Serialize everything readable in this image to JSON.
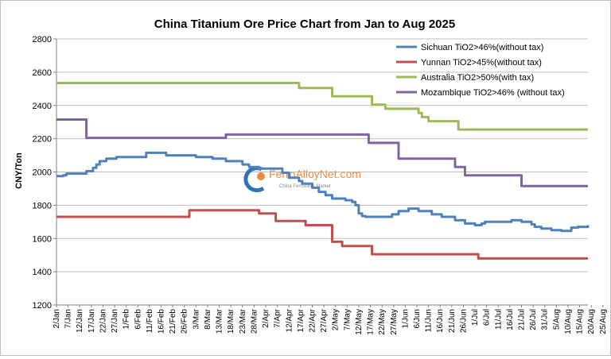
{
  "chart_data": {
    "type": "line",
    "title": "China Titanium Ore Price Chart from Jan to Aug 2025",
    "ylabel": "CNY/Ton",
    "xlabel": "",
    "ylim": [
      1200,
      2800
    ],
    "yticks": [
      1200,
      1400,
      1600,
      1800,
      2000,
      2200,
      2400,
      2600,
      2800
    ],
    "grid": true,
    "legend_position": "top-right",
    "x_count": 161,
    "xtick_labels": [
      "2/Jan",
      "7/Jan",
      "12/Jan",
      "17/Jan",
      "22/Jan",
      "27/Jan",
      "1/Feb",
      "6/Feb",
      "11/Feb",
      "16/Feb",
      "21/Feb",
      "26/Feb",
      "3/Mar",
      "8/Mar",
      "13/Mar",
      "18/Mar",
      "23/Mar",
      "28/Mar",
      "2/Apr",
      "7/Apr",
      "12/Apr",
      "17/Apr",
      "22/Apr",
      "27/Apr",
      "2/May",
      "7/May",
      "12/May",
      "17/May",
      "22/May",
      "27/May",
      "1/Jun",
      "6/Jun",
      "11/Jun",
      "16/Jun",
      "21/Jun",
      "26/Jun",
      "1/Jul",
      "6/Jul",
      "11/Jul",
      "16/Jul",
      "21/Jul",
      "26/Jul",
      "31/Jul",
      "5/Aug",
      "10/Aug",
      "15/Aug",
      "20/Aug",
      "25/Aug"
    ],
    "series": [
      {
        "name": "Sichuan TiO2>46%(without tax)",
        "color": "#4f81bd",
        "steps": [
          [
            0,
            1975
          ],
          [
            2,
            1980
          ],
          [
            3,
            1990
          ],
          [
            9,
            2005
          ],
          [
            11,
            2025
          ],
          [
            12,
            2045
          ],
          [
            13,
            2065
          ],
          [
            15,
            2080
          ],
          [
            18,
            2090
          ],
          [
            27,
            2115
          ],
          [
            33,
            2100
          ],
          [
            42,
            2090
          ],
          [
            47,
            2080
          ],
          [
            51,
            2065
          ],
          [
            56,
            2045
          ],
          [
            58,
            2030
          ],
          [
            61,
            2020
          ],
          [
            68,
            1995
          ],
          [
            70,
            1965
          ],
          [
            73,
            1945
          ],
          [
            74,
            1930
          ],
          [
            77,
            1905
          ],
          [
            79,
            1880
          ],
          [
            81,
            1860
          ],
          [
            83,
            1840
          ],
          [
            87,
            1830
          ],
          [
            89,
            1820
          ],
          [
            90,
            1800
          ],
          [
            91,
            1750
          ],
          [
            92,
            1735
          ],
          [
            93,
            1730
          ],
          [
            101,
            1745
          ],
          [
            103,
            1765
          ],
          [
            106,
            1780
          ],
          [
            109,
            1765
          ],
          [
            113,
            1745
          ],
          [
            116,
            1730
          ],
          [
            120,
            1710
          ],
          [
            123,
            1690
          ],
          [
            126,
            1680
          ],
          [
            128,
            1690
          ],
          [
            129,
            1700
          ],
          [
            137,
            1710
          ],
          [
            140,
            1700
          ],
          [
            143,
            1685
          ],
          [
            144,
            1670
          ],
          [
            146,
            1660
          ],
          [
            149,
            1650
          ],
          [
            152,
            1645
          ],
          [
            155,
            1665
          ],
          [
            157,
            1670
          ],
          [
            159,
            1670
          ],
          [
            160,
            1680
          ]
        ]
      },
      {
        "name": "Yunnan TiO2>45%(without tax)",
        "color": "#c0504d",
        "steps": [
          [
            0,
            1730
          ],
          [
            40,
            1770
          ],
          [
            61,
            1750
          ],
          [
            66,
            1705
          ],
          [
            75,
            1680
          ],
          [
            83,
            1580
          ],
          [
            86,
            1555
          ],
          [
            95,
            1505
          ],
          [
            127,
            1480
          ]
        ]
      },
      {
        "name": "Australia TiO2>50%(with tax)",
        "color": "#9bbb59",
        "steps": [
          [
            0,
            2535
          ],
          [
            73,
            2505
          ],
          [
            83,
            2455
          ],
          [
            95,
            2405
          ],
          [
            99,
            2380
          ],
          [
            109,
            2355
          ],
          [
            110,
            2330
          ],
          [
            112,
            2305
          ],
          [
            121,
            2255
          ]
        ]
      },
      {
        "name": "Mozambique TiO2>46% (without tax)",
        "color": "#8064a2",
        "steps": [
          [
            0,
            2315
          ],
          [
            9,
            2205
          ],
          [
            51,
            2225
          ],
          [
            94,
            2175
          ],
          [
            103,
            2080
          ],
          [
            120,
            2030
          ],
          [
            123,
            1980
          ],
          [
            140,
            1915
          ]
        ]
      }
    ]
  },
  "watermark": {
    "brand": "FerroAlloyNet.com",
    "tagline": "China FerroAlloy Market"
  }
}
